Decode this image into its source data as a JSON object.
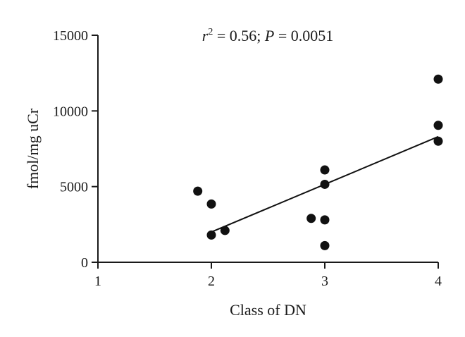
{
  "chart_data": {
    "type": "scatter",
    "title": "",
    "annotation": {
      "r_symbol": "r",
      "r_exponent": "2",
      "r_value": " = 0.56; ",
      "p_symbol": "P",
      "p_value": " = 0.0051"
    },
    "xlabel": "Class of DN",
    "ylabel": "fmol/mg uCr",
    "xlim": [
      1,
      4
    ],
    "ylim": [
      0,
      15000
    ],
    "x_ticks": [
      1,
      2,
      3,
      4
    ],
    "x_tick_labels": [
      "1",
      "2",
      "3",
      "4"
    ],
    "y_ticks": [
      0,
      5000,
      10000,
      15000
    ],
    "y_tick_labels": [
      "0",
      "5000",
      "10000",
      "15000"
    ],
    "grid": false,
    "legend": "none",
    "marker_color": "#111111",
    "series": [
      {
        "points": [
          {
            "x": 1.88,
            "y": 4700
          },
          {
            "x": 2.0,
            "y": 3850
          },
          {
            "x": 2.0,
            "y": 1800
          },
          {
            "x": 2.12,
            "y": 2100
          },
          {
            "x": 2.88,
            "y": 2900
          },
          {
            "x": 3.0,
            "y": 6100
          },
          {
            "x": 3.0,
            "y": 5150
          },
          {
            "x": 3.0,
            "y": 2800
          },
          {
            "x": 3.0,
            "y": 1100
          },
          {
            "x": 4.0,
            "y": 12100
          },
          {
            "x": 4.0,
            "y": 9050
          },
          {
            "x": 4.0,
            "y": 8000
          }
        ]
      }
    ],
    "fit_line": {
      "x": [
        2,
        4
      ],
      "y": [
        2000,
        8300
      ]
    }
  }
}
